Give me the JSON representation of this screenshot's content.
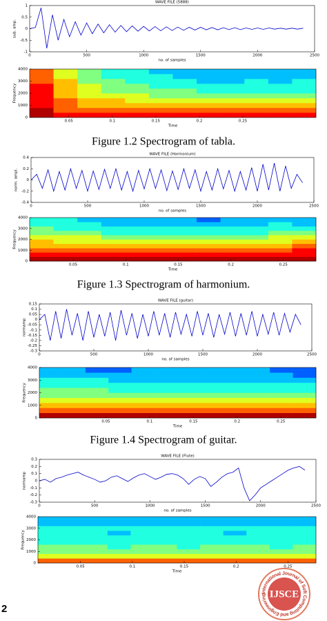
{
  "chart_data": [
    {
      "type": "line",
      "title": "WAVE FILE (5888)",
      "x_label": "no. of samples",
      "y_label": "sub. amp.",
      "color": "#0000cc",
      "xlim": [
        0,
        2500
      ],
      "xticks": [
        0,
        500,
        1000,
        1500,
        2000,
        2500
      ],
      "ylim": [
        -1,
        1
      ],
      "yticks": [
        -1,
        -0.5,
        0,
        0.5,
        1
      ],
      "x": [
        0,
        50,
        100,
        150,
        200,
        250,
        300,
        350,
        400,
        450,
        500,
        550,
        600,
        650,
        700,
        750,
        800,
        850,
        900,
        950,
        1000,
        1050,
        1100,
        1150,
        1200,
        1250,
        1300,
        1350,
        1400,
        1450,
        1500,
        1550,
        1600,
        1650,
        1700,
        1750,
        1800,
        1850,
        1900,
        1950,
        2000,
        2050,
        2100,
        2150,
        2200,
        2250,
        2300,
        2350,
        2400
      ],
      "values": [
        0,
        0.05,
        0.9,
        -0.85,
        0.6,
        -0.5,
        0.4,
        -0.35,
        0.3,
        -0.28,
        0.25,
        -0.22,
        0.2,
        -0.18,
        0.17,
        -0.15,
        0.14,
        -0.13,
        0.12,
        -0.11,
        0.1,
        -0.1,
        0.09,
        -0.09,
        0.08,
        -0.08,
        0.07,
        -0.07,
        0.06,
        -0.06,
        0.06,
        -0.05,
        0.05,
        -0.05,
        0.04,
        -0.04,
        0.04,
        -0.04,
        0.03,
        -0.03,
        0.03,
        -0.03,
        0.03,
        -0.02,
        0.02,
        -0.02,
        0.02,
        -0.02,
        0.02
      ]
    },
    {
      "type": "heatmap",
      "x_label": "Time",
      "y_label": "Frequency",
      "xlim": [
        0.005,
        0.334
      ],
      "xticks": [
        0.05,
        0.1,
        0.15,
        0.2,
        0.25
      ],
      "ylim": [
        0,
        4000
      ],
      "yticks": [
        0,
        1000,
        2000,
        3000,
        4000
      ],
      "zlim": [
        0,
        10
      ],
      "colormap": [
        "#00008f",
        "#0000ff",
        "#0060ff",
        "#00bfff",
        "#20ffdf",
        "#80ff80",
        "#dfff20",
        "#ffbf00",
        "#ff6000",
        "#ff0000",
        "#b00000"
      ],
      "values": [
        [
          10,
          9,
          9,
          9,
          9,
          9,
          9,
          9,
          9,
          9,
          9,
          9
        ],
        [
          10,
          8,
          8,
          8,
          8,
          8,
          8,
          8,
          8,
          8,
          8,
          8
        ],
        [
          9,
          8,
          7,
          7,
          7,
          7,
          7,
          7,
          7,
          7,
          7,
          7
        ],
        [
          9,
          8,
          7,
          7,
          6,
          6,
          6,
          6,
          6,
          6,
          6,
          6
        ],
        [
          9,
          7,
          6,
          6,
          6,
          5,
          5,
          5,
          5,
          5,
          5,
          5
        ],
        [
          9,
          7,
          6,
          5,
          5,
          5,
          5,
          4,
          4,
          4,
          4,
          4
        ],
        [
          9,
          7,
          6,
          5,
          5,
          4,
          4,
          4,
          4,
          4,
          4,
          4
        ],
        [
          8,
          7,
          5,
          5,
          4,
          4,
          4,
          3,
          3,
          4,
          3,
          4
        ],
        [
          8,
          6,
          5,
          4,
          4,
          4,
          3,
          3,
          3,
          3,
          3,
          3
        ],
        [
          8,
          6,
          5,
          4,
          4,
          3,
          3,
          3,
          3,
          3,
          3,
          3
        ]
      ]
    },
    {
      "type": "line",
      "title": "WAVE FILE (Harmonium)",
      "x_label": "no. of samples",
      "y_label": "norm. ampl.",
      "color": "#0000cc",
      "xlim": [
        0,
        2500
      ],
      "xticks": [
        0,
        500,
        1000,
        1500,
        2000,
        2500
      ],
      "ylim": [
        -0.4,
        0.4
      ],
      "yticks": [
        -0.4,
        -0.2,
        0,
        0.2,
        0.4
      ],
      "x": [
        0,
        50,
        100,
        150,
        200,
        250,
        300,
        350,
        400,
        450,
        500,
        550,
        600,
        650,
        700,
        750,
        800,
        850,
        900,
        950,
        1000,
        1050,
        1100,
        1150,
        1200,
        1250,
        1300,
        1350,
        1400,
        1450,
        1500,
        1550,
        1600,
        1650,
        1700,
        1750,
        1800,
        1850,
        1900,
        1950,
        2000,
        2050,
        2100,
        2150,
        2200,
        2250,
        2300,
        2350,
        2400
      ],
      "values": [
        0,
        0.1,
        -0.15,
        0.18,
        -0.2,
        0.15,
        -0.18,
        0.2,
        -0.15,
        0.17,
        -0.2,
        0.16,
        -0.17,
        0.19,
        -0.15,
        0.2,
        -0.18,
        0.15,
        -0.2,
        0.17,
        -0.16,
        0.2,
        -0.15,
        0.18,
        -0.19,
        0.16,
        -0.17,
        0.2,
        -0.15,
        0.18,
        -0.2,
        0.15,
        -0.18,
        0.2,
        -0.16,
        0.17,
        -0.2,
        0.15,
        -0.18,
        0.22,
        -0.2,
        0.28,
        -0.18,
        0.3,
        -0.2,
        0.25,
        -0.15,
        0.1,
        -0.05
      ]
    },
    {
      "type": "heatmap",
      "x_label": "Time",
      "y_label": "Frequency",
      "xlim": [
        0.0086,
        0.281
      ],
      "xticks": [
        0.05,
        0.1,
        0.15,
        0.2,
        0.25
      ],
      "ylim": [
        0,
        4000
      ],
      "yticks": [
        0,
        1000,
        2000,
        3000,
        4000
      ],
      "zlim": [
        0,
        10
      ],
      "colormap": [
        "#00008f",
        "#0000ff",
        "#0060ff",
        "#00bfff",
        "#20ffdf",
        "#80ff80",
        "#dfff20",
        "#ffbf00",
        "#ff6000",
        "#ff0000",
        "#b00000"
      ],
      "values": [
        [
          10,
          10,
          10,
          10,
          10,
          10,
          10,
          10,
          10,
          10,
          10,
          10
        ],
        [
          9,
          9,
          9,
          9,
          9,
          9,
          9,
          9,
          9,
          9,
          9,
          9
        ],
        [
          8,
          8,
          8,
          8,
          8,
          8,
          8,
          8,
          8,
          8,
          8,
          9
        ],
        [
          7,
          7,
          7,
          7,
          7,
          7,
          7,
          7,
          7,
          7,
          7,
          8
        ],
        [
          7,
          6,
          6,
          6,
          6,
          6,
          6,
          6,
          6,
          6,
          6,
          7
        ],
        [
          6,
          6,
          6,
          5,
          5,
          5,
          5,
          5,
          5,
          5,
          6,
          6
        ],
        [
          5,
          5,
          5,
          4,
          4,
          4,
          4,
          4,
          4,
          4,
          5,
          5
        ],
        [
          5,
          4,
          4,
          4,
          4,
          4,
          4,
          4,
          4,
          4,
          4,
          4
        ],
        [
          4,
          4,
          4,
          3,
          3,
          3,
          3,
          3,
          3,
          3,
          4,
          3
        ],
        [
          4,
          4,
          3,
          3,
          3,
          3,
          3,
          2,
          3,
          3,
          3,
          3
        ]
      ]
    },
    {
      "type": "line",
      "title": "WAVE FILE (guitar)",
      "x_label": "no. of samples",
      "y_label": "normamp",
      "color": "#0000cc",
      "xlim": [
        0,
        2500
      ],
      "xticks": [
        0,
        500,
        1000,
        1500,
        2000,
        2500
      ],
      "ylim": [
        -0.3,
        0.15
      ],
      "yticks": [
        -0.3,
        -0.25,
        -0.2,
        -0.15,
        -0.1,
        -0.05,
        0,
        0.05,
        0.1,
        0.15
      ],
      "x": [
        0,
        50,
        100,
        150,
        200,
        250,
        300,
        350,
        400,
        450,
        500,
        550,
        600,
        650,
        700,
        750,
        800,
        850,
        900,
        950,
        1000,
        1050,
        1100,
        1150,
        1200,
        1250,
        1300,
        1350,
        1400,
        1450,
        1500,
        1550,
        1600,
        1650,
        1700,
        1750,
        1800,
        1850,
        1900,
        1950,
        2000,
        2050,
        2100,
        2150,
        2200,
        2250,
        2300,
        2350,
        2400
      ],
      "values": [
        0,
        0.05,
        -0.2,
        0.08,
        -0.18,
        0.1,
        -0.15,
        0.06,
        -0.2,
        0.08,
        -0.17,
        0.05,
        -0.16,
        0.07,
        -0.2,
        0.09,
        -0.15,
        0.06,
        -0.18,
        0.05,
        -0.16,
        0.08,
        -0.15,
        0.06,
        -0.17,
        0.07,
        -0.14,
        0.05,
        -0.16,
        0.08,
        -0.15,
        0.06,
        -0.17,
        0.05,
        -0.14,
        0.07,
        -0.16,
        0.06,
        -0.15,
        0.08,
        -0.16,
        0.05,
        -0.14,
        0.07,
        -0.15,
        0.06,
        -0.12,
        0.05,
        -0.05
      ]
    },
    {
      "type": "heatmap",
      "x_label": "Time",
      "y_label": "Frequency",
      "xlim": [
        -0.026,
        0.29
      ],
      "xticks": [
        0.05,
        0.1,
        0.15,
        0.2,
        0.25
      ],
      "ylim": [
        0,
        4000
      ],
      "yticks": [
        0,
        1000,
        2000,
        3000,
        4000
      ],
      "zlim": [
        0,
        10
      ],
      "colormap": [
        "#00008f",
        "#0000ff",
        "#0060ff",
        "#00bfff",
        "#20ffdf",
        "#80ff80",
        "#dfff20",
        "#ffbf00",
        "#ff6000",
        "#ff0000",
        "#b00000"
      ],
      "values": [
        [
          10,
          10,
          10,
          10,
          10,
          10,
          10,
          10,
          10,
          10,
          10,
          10
        ],
        [
          8,
          8,
          8,
          8,
          8,
          8,
          8,
          8,
          8,
          8,
          8,
          8
        ],
        [
          7,
          7,
          7,
          7,
          7,
          7,
          7,
          7,
          7,
          7,
          7,
          7
        ],
        [
          6,
          6,
          6,
          6,
          6,
          6,
          6,
          6,
          6,
          6,
          6,
          6
        ],
        [
          5,
          5,
          5,
          5,
          5,
          5,
          5,
          5,
          5,
          5,
          5,
          5
        ],
        [
          5,
          5,
          5,
          4,
          4,
          4,
          4,
          4,
          4,
          4,
          4,
          4
        ],
        [
          4,
          4,
          4,
          4,
          4,
          4,
          4,
          4,
          4,
          4,
          4,
          4
        ],
        [
          4,
          4,
          4,
          3,
          3,
          3,
          3,
          3,
          3,
          3,
          3,
          3
        ],
        [
          3,
          3,
          3,
          3,
          3,
          3,
          3,
          3,
          3,
          3,
          3,
          2
        ],
        [
          3,
          3,
          2,
          2,
          3,
          3,
          3,
          3,
          3,
          3,
          2,
          2
        ]
      ]
    },
    {
      "type": "line",
      "title": "WAVE FILE (Flute)",
      "x_label": "no. of samples",
      "y_label": "normamp",
      "color": "#0000cc",
      "xlim": [
        0,
        2500
      ],
      "xticks": [
        0,
        500,
        1000,
        1500,
        2000,
        2500
      ],
      "ylim": [
        -0.3,
        0.3
      ],
      "yticks": [
        -0.3,
        -0.2,
        -0.1,
        0,
        0.1,
        0.2,
        0.3
      ],
      "x": [
        0,
        50,
        100,
        150,
        200,
        250,
        300,
        350,
        400,
        450,
        500,
        550,
        600,
        650,
        700,
        750,
        800,
        850,
        900,
        950,
        1000,
        1050,
        1100,
        1150,
        1200,
        1250,
        1300,
        1350,
        1400,
        1450,
        1500,
        1550,
        1600,
        1650,
        1700,
        1750,
        1800,
        1850,
        1900,
        1950,
        2000,
        2050,
        2100,
        2150,
        2200,
        2250,
        2300,
        2350,
        2400
      ],
      "values": [
        0,
        0.02,
        -0.02,
        0.03,
        0.05,
        0.08,
        0.1,
        0.12,
        0.08,
        0.05,
        0.02,
        -0.02,
        0,
        0.05,
        0.07,
        0.03,
        -0.01,
        0.04,
        0.08,
        0.1,
        0.06,
        0.02,
        0.05,
        0.09,
        0.1,
        0.08,
        0.03,
        -0.05,
        0.02,
        0.06,
        0.03,
        -0.08,
        -0.02,
        0.05,
        0.1,
        0.12,
        0.18,
        -0.1,
        -0.28,
        -0.2,
        -0.1,
        -0.05,
        0,
        0.05,
        0.1,
        0.15,
        0.18,
        0.2,
        0.15
      ]
    },
    {
      "type": "heatmap",
      "x_label": "Time",
      "y_label": "Frequency",
      "xlim": [
        0.009,
        0.277
      ],
      "xticks": [
        0.05,
        0.1,
        0.15,
        0.2,
        0.25
      ],
      "ylim": [
        0,
        4000
      ],
      "yticks": [
        0,
        1000,
        2000,
        3000,
        4000
      ],
      "zlim": [
        0,
        10
      ],
      "colormap": [
        "#00008f",
        "#0000ff",
        "#0060ff",
        "#00bfff",
        "#20ffdf",
        "#80ff80",
        "#dfff20",
        "#ffbf00",
        "#ff6000",
        "#ff0000",
        "#b00000"
      ],
      "values": [
        [
          8,
          8,
          8,
          8,
          8,
          8,
          8,
          8,
          8,
          8,
          8,
          8
        ],
        [
          6,
          6,
          6,
          6,
          6,
          6,
          6,
          6,
          6,
          6,
          6,
          6
        ],
        [
          5,
          5,
          5,
          5,
          5,
          5,
          5,
          5,
          5,
          5,
          5,
          5
        ],
        [
          5,
          5,
          5,
          4,
          5,
          5,
          4,
          5,
          5,
          5,
          4,
          5
        ],
        [
          4,
          4,
          4,
          4,
          4,
          4,
          4,
          4,
          4,
          4,
          4,
          4
        ],
        [
          4,
          4,
          4,
          4,
          4,
          4,
          4,
          4,
          4,
          4,
          4,
          4
        ],
        [
          4,
          4,
          4,
          3,
          4,
          4,
          4,
          4,
          3,
          4,
          4,
          4
        ],
        [
          4,
          4,
          4,
          4,
          4,
          4,
          4,
          4,
          4,
          4,
          4,
          4
        ],
        [
          3,
          3,
          3,
          3,
          3,
          3,
          3,
          3,
          3,
          3,
          3,
          3
        ],
        [
          3,
          3,
          3,
          3,
          3,
          3,
          3,
          3,
          3,
          3,
          3,
          3
        ]
      ]
    }
  ],
  "captions": [
    "Figure 1.2 Spectrogram of tabla.",
    "Figure 1.3 Spectrogram of harmonium.",
    "Figure 1.4 Spectrogram of guitar."
  ],
  "page_number": "2",
  "logo": {
    "acronym": "IJSCE",
    "ring_text": "International Journal of Soft Computing and Engineering"
  }
}
